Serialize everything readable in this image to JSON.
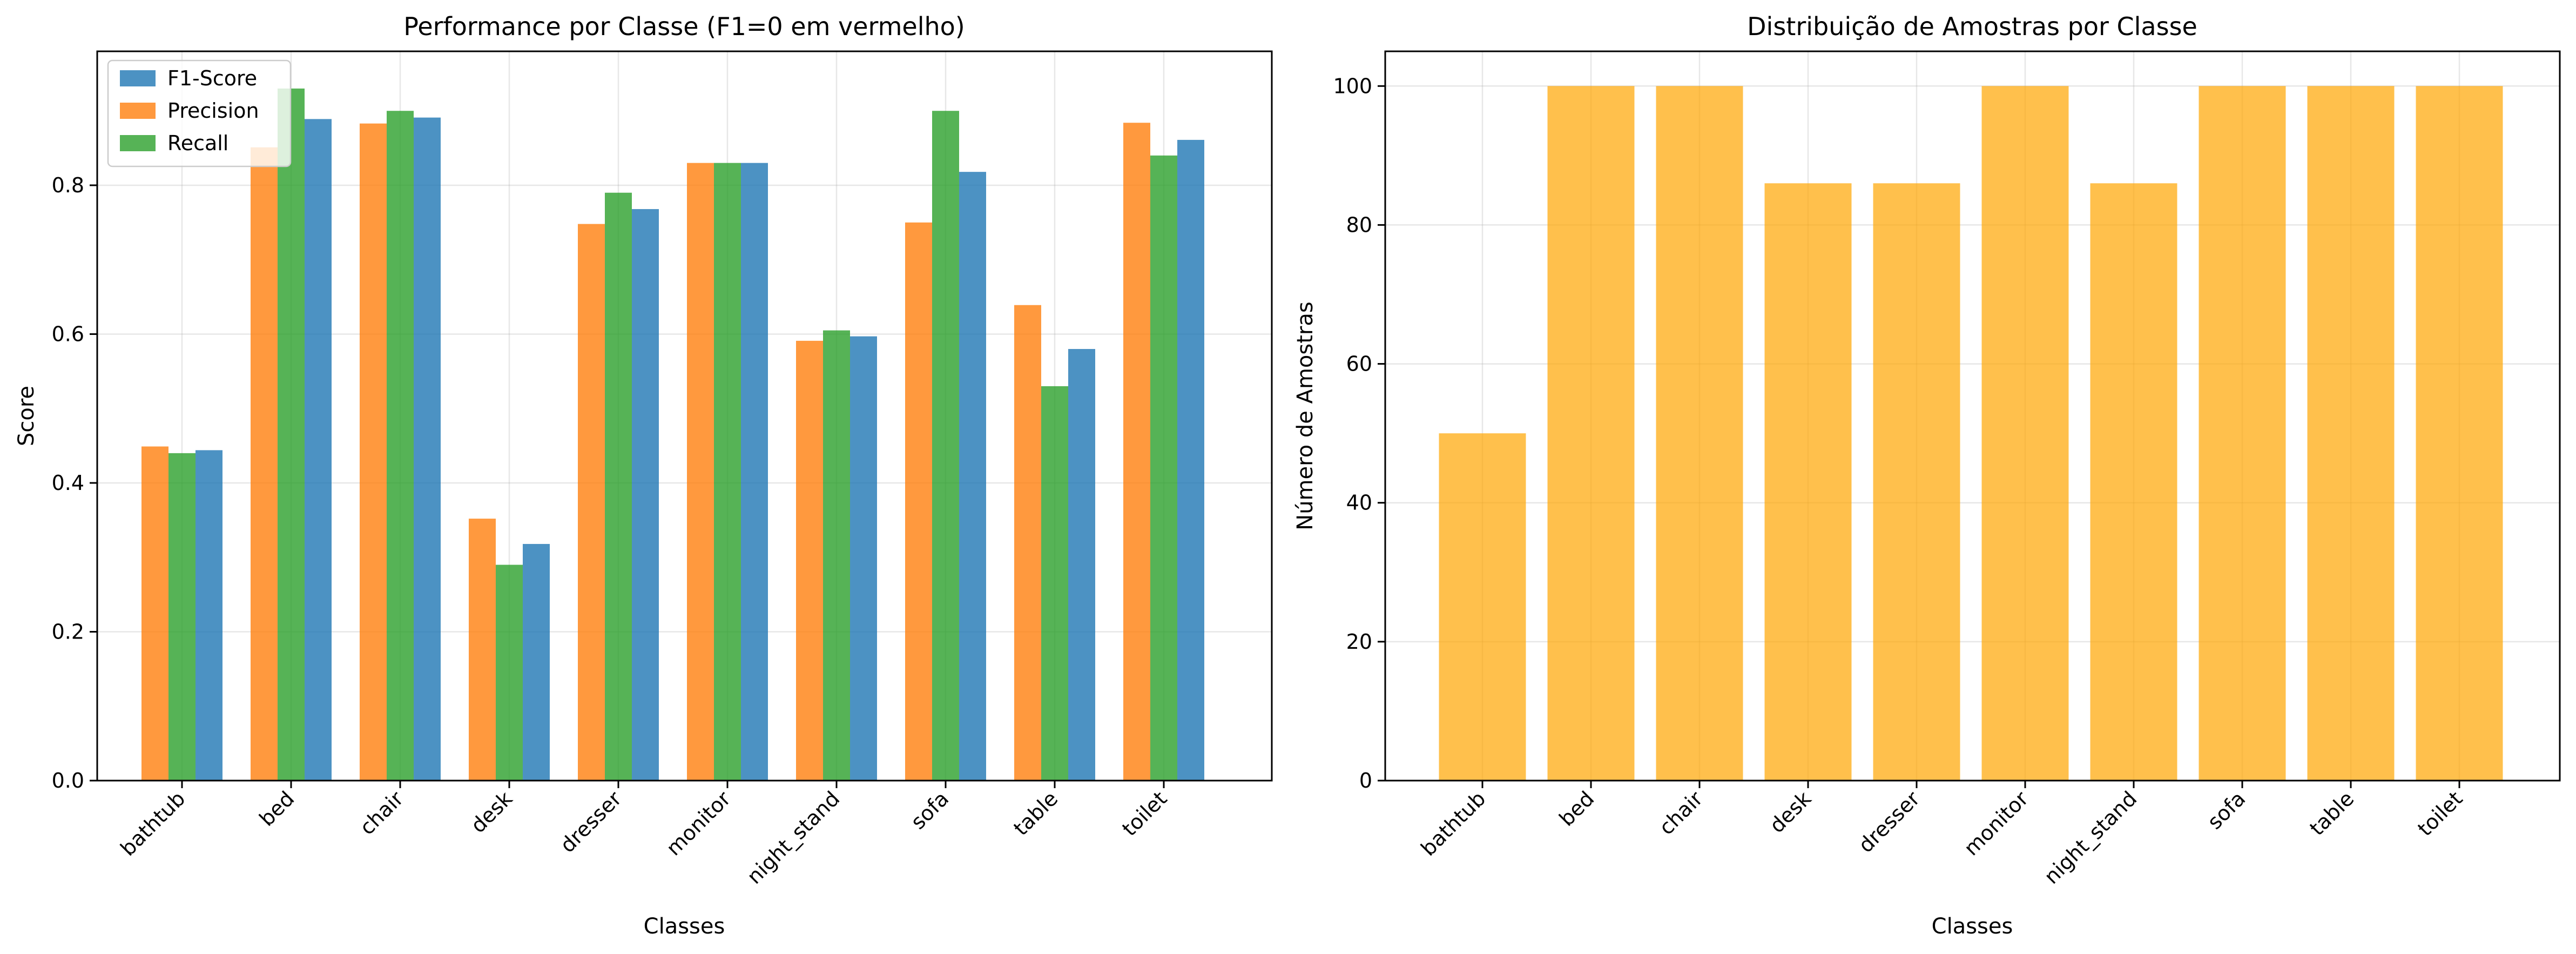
{
  "chart_data": [
    {
      "type": "bar",
      "title": "Performance por Classe (F1=0 em vermelho)",
      "xlabel": "Classes",
      "ylabel": "Score",
      "ylim": [
        0,
        0.98
      ],
      "yticks": [
        "0.0",
        "0.2",
        "0.4",
        "0.6",
        "0.8"
      ],
      "grid": true,
      "legend_position": "top-left",
      "categories": [
        "bathtub",
        "bed",
        "chair",
        "desk",
        "dresser",
        "monitor",
        "night_stand",
        "sofa",
        "table",
        "toilet"
      ],
      "series": [
        {
          "name": "F1-Score",
          "color": "#1f77b4",
          "values": [
            0.444,
            0.889,
            0.891,
            0.318,
            0.768,
            0.83,
            0.597,
            0.818,
            0.58,
            0.861
          ]
        },
        {
          "name": "Precision",
          "color": "#ff7f0e",
          "values": [
            0.449,
            0.851,
            0.883,
            0.352,
            0.748,
            0.83,
            0.591,
            0.75,
            0.639,
            0.884
          ]
        },
        {
          "name": "Recall",
          "color": "#2ca02c",
          "values": [
            0.44,
            0.93,
            0.9,
            0.29,
            0.79,
            0.83,
            0.605,
            0.9,
            0.53,
            0.84
          ]
        }
      ]
    },
    {
      "type": "bar",
      "title": "Distribuição de Amostras por Classe",
      "xlabel": "Classes",
      "ylabel": "Número de Amostras",
      "ylim": [
        0,
        105
      ],
      "yticks": [
        "0",
        "20",
        "40",
        "60",
        "80",
        "100"
      ],
      "grid": true,
      "color": "#ffa500",
      "categories": [
        "bathtub",
        "bed",
        "chair",
        "desk",
        "dresser",
        "monitor",
        "night_stand",
        "sofa",
        "table",
        "toilet"
      ],
      "values": [
        50,
        100,
        100,
        86,
        86,
        100,
        86,
        100,
        100,
        100
      ]
    }
  ]
}
